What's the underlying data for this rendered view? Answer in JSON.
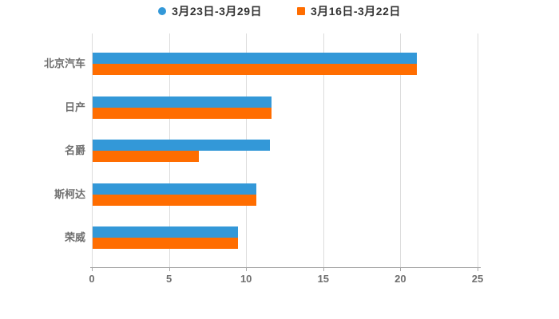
{
  "legend": {
    "items": [
      {
        "label": "3月23日-3月29日",
        "marker": "circle",
        "color": "#3398d8"
      },
      {
        "label": "3月16日-3月22日",
        "marker": "square",
        "color": "#ff6d00"
      }
    ]
  },
  "chart_data": {
    "type": "bar",
    "orientation": "horizontal",
    "title": "",
    "xlabel": "",
    "ylabel": "",
    "categories": [
      "北京汽车",
      "日产",
      "名爵",
      "斯柯达",
      "荣威"
    ],
    "series": [
      {
        "name": "3月23日-3月29日",
        "color": "#3398d8",
        "marker": "circle",
        "values": [
          21,
          11.6,
          11.5,
          10.6,
          9.4
        ]
      },
      {
        "name": "3月16日-3月22日",
        "color": "#ff6d00",
        "marker": "square",
        "values": [
          21,
          11.6,
          6.9,
          10.6,
          9.4
        ]
      }
    ],
    "xlim": [
      0,
      25
    ],
    "xticks": [
      0,
      5,
      10,
      15,
      20,
      25
    ],
    "grid": true,
    "legend_position": "top",
    "colors": {
      "gridline": "#dcdcdc",
      "axis": "#a6a6a6",
      "tick_label": "#6f6f6f",
      "category_label": "#6f6f6f",
      "legend_text": "#333333",
      "background": "#ffffff"
    }
  }
}
